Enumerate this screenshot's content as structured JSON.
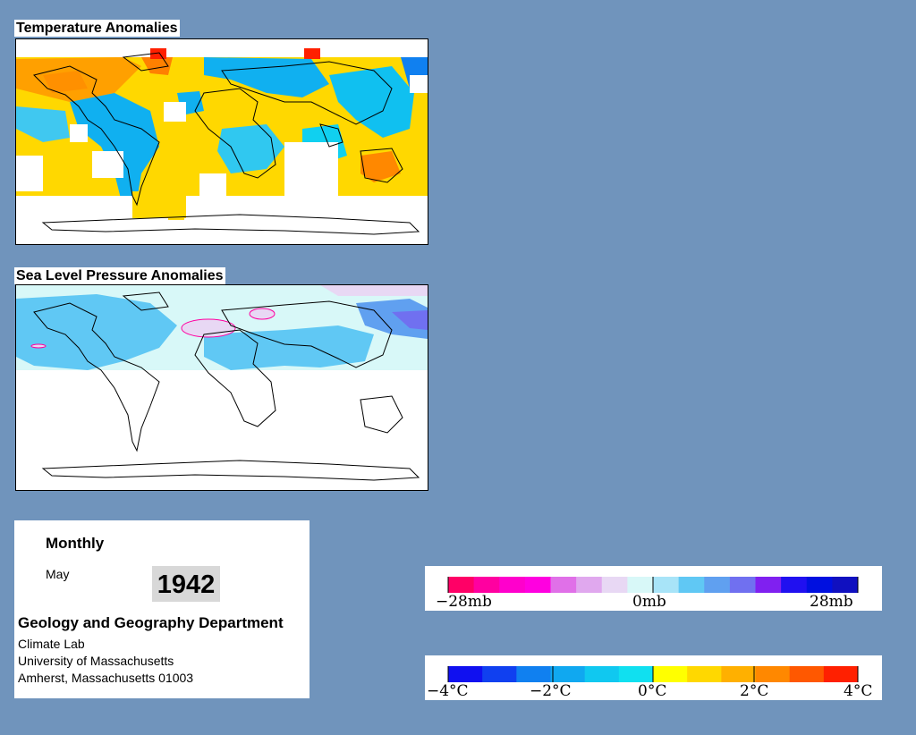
{
  "panels": {
    "temperature": {
      "title": "Temperature Anomalies"
    },
    "pressure": {
      "title": "Sea Level Pressure Anomalies"
    }
  },
  "info": {
    "period": "Monthly",
    "month": "May",
    "year": "1942",
    "department": "Geology and Geography Department",
    "lab": "Climate Lab",
    "university": "University of Massachusetts",
    "address": "Amherst, Massachusetts 01003"
  },
  "legends": {
    "pressure": {
      "tick_labels": [
        "−28mb",
        "0mb",
        "28mb"
      ],
      "colors": [
        "#ff0066",
        "#ff00a0",
        "#ff00cc",
        "#ff00e0",
        "#e070e8",
        "#e0a8ee",
        "#e8d8f4",
        "#d8f8f8",
        "#a8e4f8",
        "#60c8f4",
        "#60a0f0",
        "#7070f0",
        "#8020f0",
        "#2010f0",
        "#0010e0",
        "#1010c0"
      ]
    },
    "temperature": {
      "tick_labels": [
        "−4°C",
        "−2°C",
        "0°C",
        "2°C",
        "4°C"
      ],
      "colors": [
        "#1010f0",
        "#1040f0",
        "#1080f0",
        "#10a8f0",
        "#10c8f0",
        "#10e0f0",
        "#ffff00",
        "#ffd800",
        "#ffb000",
        "#ff8800",
        "#ff5800",
        "#ff2000"
      ]
    }
  },
  "colors": {
    "background": "#7094bc",
    "warm": "#ffb000",
    "cool": "#10b0f0"
  }
}
